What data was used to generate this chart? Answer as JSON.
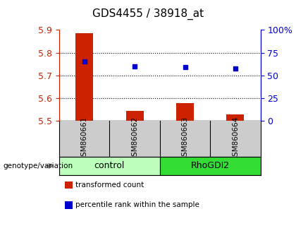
{
  "title": "GDS4455 / 38918_at",
  "samples": [
    "GSM860661",
    "GSM860662",
    "GSM860663",
    "GSM860664"
  ],
  "red_values": [
    5.885,
    5.543,
    5.578,
    5.527
  ],
  "blue_values": [
    5.76,
    5.738,
    5.737,
    5.73
  ],
  "y_min": 5.5,
  "y_max": 5.9,
  "y_ticks": [
    5.5,
    5.6,
    5.7,
    5.8,
    5.9
  ],
  "right_y_ticks": [
    0,
    25,
    50,
    75,
    100
  ],
  "right_y_labels": [
    "0",
    "25",
    "50",
    "75",
    "100%"
  ],
  "dotted_lines": [
    5.6,
    5.7,
    5.8
  ],
  "groups": [
    {
      "label": "control",
      "samples": [
        0,
        1
      ],
      "color": "#bbffbb"
    },
    {
      "label": "RhoGDI2",
      "samples": [
        2,
        3
      ],
      "color": "#33dd33"
    }
  ],
  "bar_color": "#cc2200",
  "marker_color": "#0000cc",
  "bar_width": 0.35,
  "background_plot": "#ffffff",
  "background_sample": "#cccccc",
  "title_color": "#000000",
  "left_axis_color": "#cc2200",
  "right_axis_color": "#0000cc",
  "legend_items": [
    {
      "label": "transformed count",
      "color": "#cc2200"
    },
    {
      "label": "percentile rank within the sample",
      "color": "#0000cc"
    }
  ]
}
